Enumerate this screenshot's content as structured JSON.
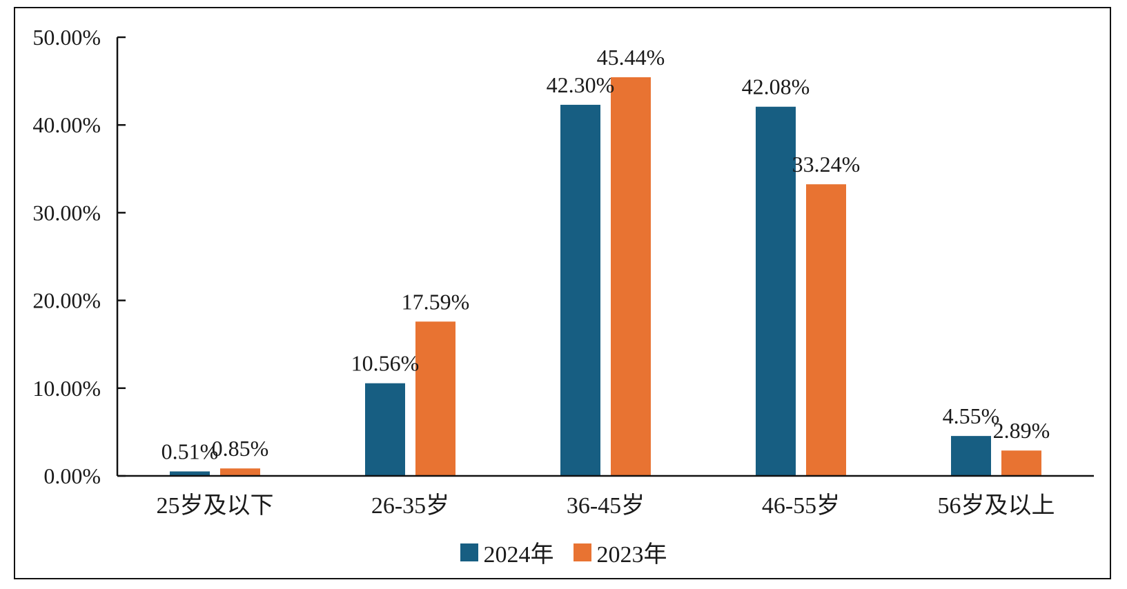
{
  "chart_data": {
    "type": "bar",
    "categories": [
      "25岁及以下",
      "26-35岁",
      "36-45岁",
      "46-55岁",
      "56岁及以上"
    ],
    "series": [
      {
        "name": "2024年",
        "color": "#175E82",
        "values": [
          0.51,
          10.56,
          42.3,
          42.08,
          4.55
        ],
        "labels": [
          "0.51%",
          "10.56%",
          "42.30%",
          "42.08%",
          "4.55%"
        ]
      },
      {
        "name": "2023年",
        "color": "#E87332",
        "values": [
          0.85,
          17.59,
          45.44,
          33.24,
          2.89
        ],
        "labels": [
          "0.85%",
          "17.59%",
          "45.44%",
          "33.24%",
          "2.89%"
        ]
      }
    ],
    "ylim": [
      0,
      50
    ],
    "yticks": [
      0,
      10,
      20,
      30,
      40,
      50
    ],
    "ytick_labels": [
      "0.00%",
      "10.00%",
      "20.00%",
      "30.00%",
      "40.00%",
      "50.00%"
    ],
    "grid": false,
    "legend_position": "bottom-center"
  }
}
